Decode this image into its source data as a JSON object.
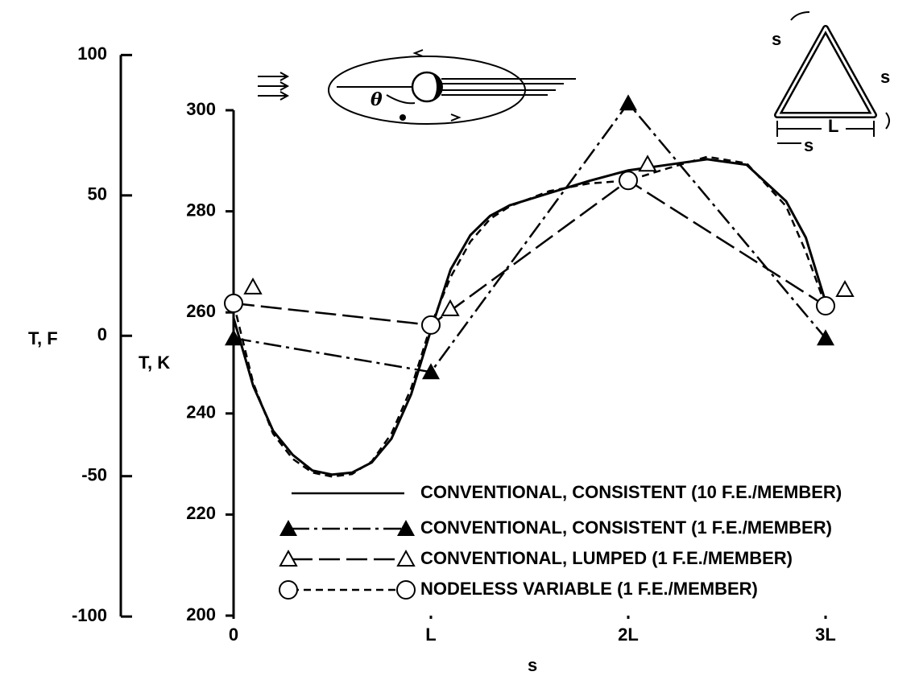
{
  "chart_data": {
    "type": "line",
    "xlabel": "s",
    "ylabel": "T, K",
    "y2label": "T, F",
    "xlim": [
      0,
      3
    ],
    "xticks": [
      0,
      {
        "value": 1,
        "label": "L"
      },
      {
        "value": 2,
        "label": "2L"
      },
      {
        "value": 3,
        "label": "3L"
      }
    ],
    "ylim": [
      200,
      300
    ],
    "yticks": [
      200,
      220,
      240,
      260,
      280,
      300
    ],
    "y2lim": [
      -100,
      100
    ],
    "y2ticks": [
      -100,
      -50,
      0,
      50,
      100
    ],
    "annotations": [
      "θ",
      "s",
      "s",
      "L",
      "s"
    ],
    "series": [
      {
        "name": "CONVENTIONAL, CONSISTENT (10 F.E./MEMBER)",
        "color": "#000000",
        "line_style": "solid",
        "marker": "none",
        "x": [
          0,
          0.1,
          0.2,
          0.3,
          0.4,
          0.5,
          0.6,
          0.7,
          0.8,
          0.9,
          1.0,
          1.1,
          1.2,
          1.3,
          1.4,
          1.6,
          1.8,
          2.0,
          2.2,
          2.4,
          2.6,
          2.8,
          2.9,
          3.0
        ],
        "values": [
          258.9,
          245.4,
          236.6,
          231.8,
          228.7,
          227.9,
          228.3,
          230.3,
          235,
          243.8,
          256.5,
          268.5,
          275.3,
          279.1,
          281.2,
          283.6,
          286,
          288.1,
          289.2,
          290.3,
          289.2,
          282,
          274.8,
          262.1
        ]
      },
      {
        "name": "CONVENTIONAL, CONSISTENT (1 F.E./MEMBER)",
        "color": "#000000",
        "line_style": "dash-dot",
        "marker": "filled-triangle",
        "x": [
          0,
          1,
          2,
          3
        ],
        "values": [
          254.9,
          248.2,
          301.4,
          254.9
        ]
      },
      {
        "name": "CONVENTIONAL, LUMPED (1 F.E./MEMBER)",
        "color": "#000000",
        "line_style": "long-dash",
        "marker": "open-triangle",
        "x": [
          0,
          1,
          2,
          3
        ],
        "values": [
          261.8,
          257.5,
          286.1,
          261.3
        ]
      },
      {
        "name": "NODELESS VARIABLE (1 F.E./MEMBER)",
        "color": "#000000",
        "line_style": "dash",
        "marker": "circle",
        "x": [
          0,
          0.1,
          0.2,
          0.3,
          0.4,
          0.5,
          0.6,
          0.7,
          0.8,
          0.9,
          1.0,
          1.1,
          1.2,
          1.3,
          1.4,
          1.6,
          1.8,
          2.0,
          2.2,
          2.4,
          2.6,
          2.8,
          2.9,
          3.0
        ],
        "values": [
          261.8,
          246,
          236,
          231,
          228.3,
          227.5,
          228,
          230.5,
          236,
          245,
          257.5,
          267,
          274,
          278.5,
          281,
          284,
          285.5,
          286.1,
          288.5,
          290.8,
          289.5,
          281,
          272,
          261.3
        ]
      }
    ]
  }
}
